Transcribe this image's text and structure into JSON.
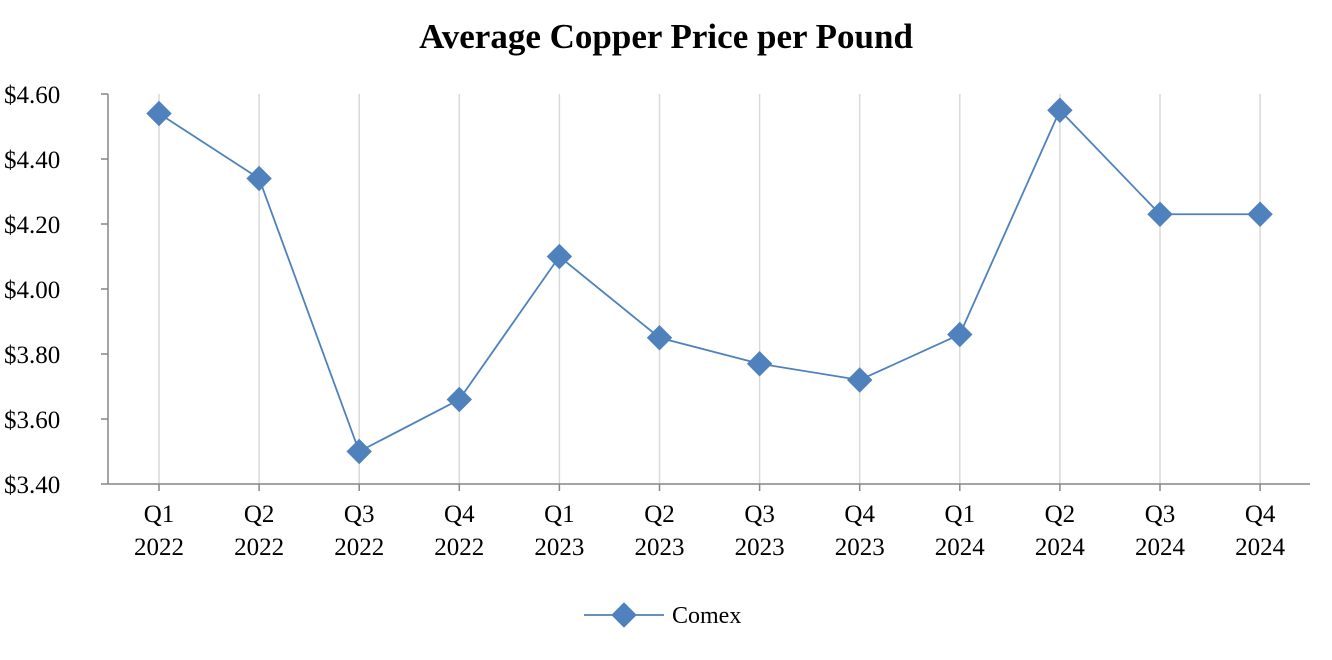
{
  "chart_data": {
    "type": "line",
    "title": "Average Copper Price per Pound",
    "xlabel": "",
    "ylabel": "",
    "categories": [
      [
        "Q1",
        "2022"
      ],
      [
        "Q2",
        "2022"
      ],
      [
        "Q3",
        "2022"
      ],
      [
        "Q4",
        "2022"
      ],
      [
        "Q1",
        "2023"
      ],
      [
        "Q2",
        "2023"
      ],
      [
        "Q3",
        "2023"
      ],
      [
        "Q4",
        "2023"
      ],
      [
        "Q1",
        "2024"
      ],
      [
        "Q2",
        "2024"
      ],
      [
        "Q3",
        "2024"
      ],
      [
        "Q4",
        "2024"
      ]
    ],
    "series": [
      {
        "name": "Comex",
        "color": "#4F81BD",
        "marker": "diamond",
        "values": [
          4.54,
          4.34,
          3.5,
          3.66,
          4.1,
          3.85,
          3.77,
          3.72,
          3.86,
          4.55,
          4.23,
          4.23
        ]
      }
    ],
    "ylim": [
      3.4,
      4.6
    ],
    "yticks": [
      3.4,
      3.6,
      3.8,
      4.0,
      4.2,
      4.4,
      4.6
    ],
    "ytick_labels": [
      "$3.40",
      "$3.60",
      "$3.80",
      "$4.00",
      "$4.20",
      "$4.40",
      "$4.60"
    ],
    "grid": "vertical",
    "legend": "bottom-center"
  }
}
